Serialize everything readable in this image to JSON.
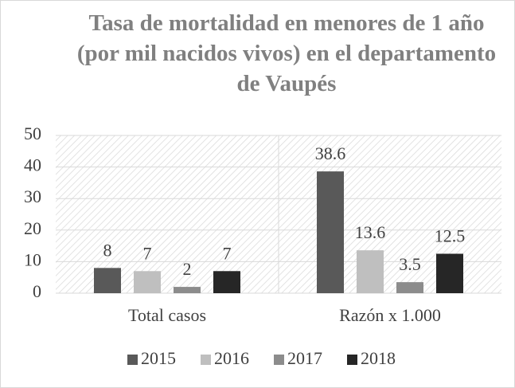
{
  "chart_data": {
    "type": "bar",
    "title": "Tasa de mortalidad en menores de 1 año (por mil nacidos vivos) en el departamento de Vaupés",
    "categories": [
      "Total casos",
      "Razón x 1.000"
    ],
    "series": [
      {
        "name": "2015",
        "color": "#595959",
        "values": [
          8,
          38.6
        ]
      },
      {
        "name": "2016",
        "color": "#bfbfbf",
        "values": [
          7,
          13.6
        ]
      },
      {
        "name": "2017",
        "color": "#8c8c8c",
        "values": [
          2,
          3.5
        ]
      },
      {
        "name": "2018",
        "color": "#262626",
        "values": [
          7,
          12.5
        ]
      }
    ],
    "ylim": [
      0,
      50
    ],
    "yticks": [
      0,
      10,
      20,
      30,
      40,
      50
    ],
    "grid": true,
    "legend": "bottom"
  }
}
